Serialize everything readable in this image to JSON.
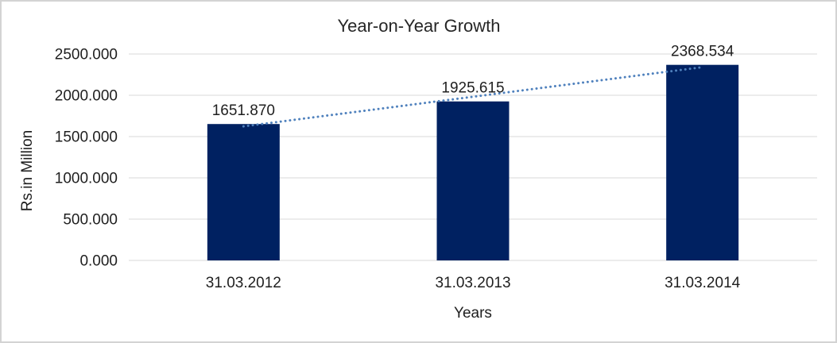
{
  "frame": {
    "background": "#FFFFFF",
    "border_color": "#D3D3D3"
  },
  "chart_data": {
    "type": "bar",
    "title": "Year-on-Year Growth",
    "xlabel": "Years",
    "ylabel": "Rs.in Million",
    "categories": [
      "31.03.2012",
      "31.03.2013",
      "31.03.2014"
    ],
    "values": [
      1651.87,
      1925.615,
      2368.534
    ],
    "data_labels": [
      "1651.870",
      "1925.615",
      "2368.534"
    ],
    "yticks": [
      0,
      500,
      1000,
      1500,
      2000,
      2500
    ],
    "ytick_labels": [
      "0.000",
      "500.000",
      "1000.000",
      "1500.000",
      "2000.000",
      "2500.000"
    ],
    "ylim": [
      0,
      2500
    ],
    "grid": true,
    "legend": "none",
    "bar_color": "#002161",
    "gridline_color": "#D9D9D9",
    "trendline": {
      "type": "linear",
      "style": "dotted",
      "color": "#4F81BD"
    }
  }
}
